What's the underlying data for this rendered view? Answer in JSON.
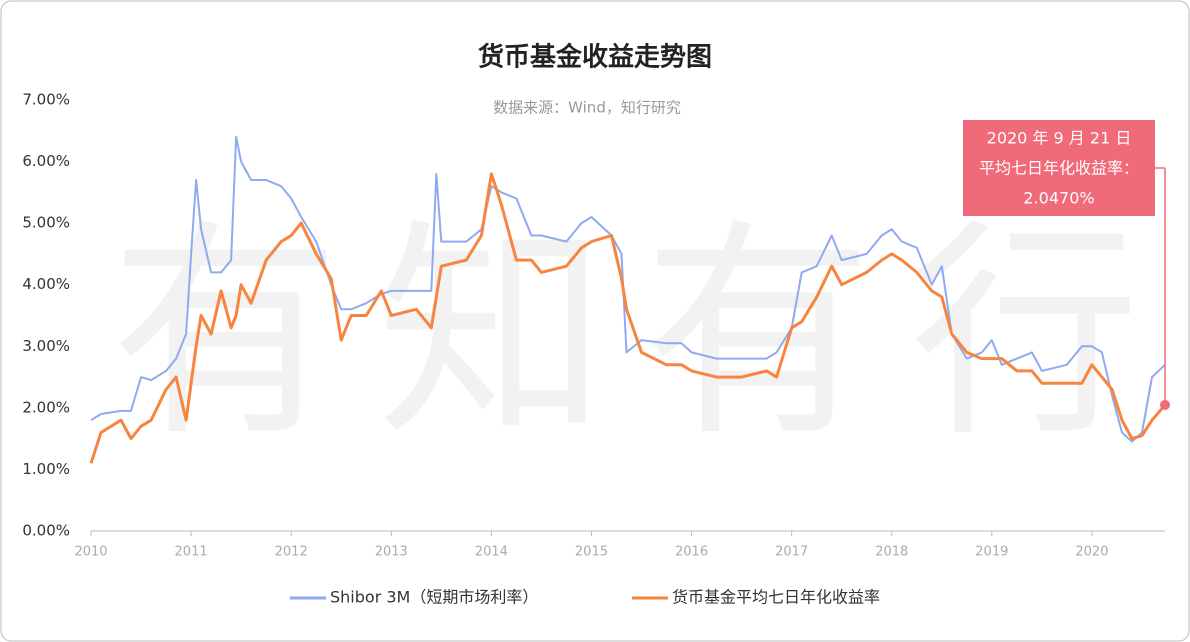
{
  "chart_data": {
    "type": "line",
    "title": "货币基金收益走势图",
    "subtitle": "数据来源：Wind，知行研究",
    "watermark": "有知有行",
    "annotation": {
      "lines": [
        "2020 年 9 月 21 日",
        "平均七日年化收益率：",
        "2.0470%"
      ],
      "color": "#f06a79"
    },
    "x": [
      2010.0,
      2010.1,
      2010.3,
      2010.4,
      2010.5,
      2010.6,
      2010.75,
      2010.85,
      2010.95,
      2011.0,
      2011.05,
      2011.1,
      2011.2,
      2011.3,
      2011.4,
      2011.45,
      2011.5,
      2011.6,
      2011.75,
      2011.9,
      2012.0,
      2012.1,
      2012.25,
      2012.4,
      2012.5,
      2012.6,
      2012.75,
      2012.9,
      2013.0,
      2013.25,
      2013.4,
      2013.45,
      2013.5,
      2013.75,
      2013.9,
      2014.0,
      2014.1,
      2014.25,
      2014.4,
      2014.5,
      2014.75,
      2014.9,
      2015.0,
      2015.2,
      2015.3,
      2015.35,
      2015.5,
      2015.75,
      2015.9,
      2016.0,
      2016.25,
      2016.5,
      2016.75,
      2016.85,
      2017.0,
      2017.1,
      2017.25,
      2017.4,
      2017.5,
      2017.75,
      2017.9,
      2018.0,
      2018.1,
      2018.25,
      2018.4,
      2018.5,
      2018.6,
      2018.75,
      2018.9,
      2019.0,
      2019.1,
      2019.25,
      2019.4,
      2019.5,
      2019.75,
      2019.9,
      2020.0,
      2020.1,
      2020.2,
      2020.3,
      2020.4,
      2020.5,
      2020.6,
      2020.73
    ],
    "series": [
      {
        "name": "Shibor 3M（短期市场利率）",
        "color": "#8faaf0",
        "values": [
          1.8,
          1.9,
          1.95,
          1.95,
          2.5,
          2.45,
          2.6,
          2.8,
          3.2,
          4.5,
          5.7,
          4.9,
          4.2,
          4.2,
          4.4,
          6.4,
          6.0,
          5.7,
          5.7,
          5.6,
          5.4,
          5.1,
          4.7,
          4.0,
          3.6,
          3.6,
          3.7,
          3.85,
          3.9,
          3.9,
          3.9,
          5.8,
          4.7,
          4.7,
          4.9,
          5.6,
          5.5,
          5.4,
          4.8,
          4.8,
          4.7,
          5.0,
          5.1,
          4.8,
          4.5,
          2.9,
          3.1,
          3.05,
          3.05,
          2.9,
          2.8,
          2.8,
          2.8,
          2.9,
          3.3,
          4.2,
          4.3,
          4.8,
          4.4,
          4.5,
          4.8,
          4.9,
          4.7,
          4.6,
          4.0,
          4.3,
          3.2,
          2.8,
          2.9,
          3.1,
          2.7,
          2.8,
          2.9,
          2.6,
          2.7,
          3.0,
          3.0,
          2.9,
          2.2,
          1.6,
          1.45,
          1.6,
          2.5,
          2.7
        ]
      },
      {
        "name": "货币基金平均七日年化收益率",
        "color": "#f7843f",
        "values": [
          1.1,
          1.6,
          1.8,
          1.5,
          1.7,
          1.8,
          2.3,
          2.5,
          1.8,
          2.4,
          3.0,
          3.5,
          3.2,
          3.9,
          3.3,
          3.5,
          4.0,
          3.7,
          4.4,
          4.7,
          4.8,
          5.0,
          4.5,
          4.1,
          3.1,
          3.5,
          3.5,
          3.9,
          3.5,
          3.6,
          3.3,
          3.8,
          4.3,
          4.4,
          4.8,
          5.8,
          5.3,
          4.4,
          4.4,
          4.2,
          4.3,
          4.6,
          4.7,
          4.8,
          4.1,
          3.6,
          2.9,
          2.7,
          2.7,
          2.6,
          2.5,
          2.5,
          2.6,
          2.5,
          3.3,
          3.4,
          3.8,
          4.3,
          4.0,
          4.2,
          4.4,
          4.5,
          4.4,
          4.2,
          3.9,
          3.8,
          3.2,
          2.9,
          2.8,
          2.8,
          2.8,
          2.6,
          2.6,
          2.4,
          2.4,
          2.4,
          2.7,
          2.5,
          2.3,
          1.8,
          1.5,
          1.55,
          1.8,
          2.047
        ]
      }
    ],
    "xlim": [
      2010,
      2020.73
    ],
    "xticks": [
      2010,
      2011,
      2012,
      2013,
      2014,
      2015,
      2016,
      2017,
      2018,
      2019,
      2020
    ],
    "ylim": [
      0,
      7
    ],
    "yticks": [
      {
        "value": 0,
        "label": "0.00%"
      },
      {
        "value": 1,
        "label": "1.00%"
      },
      {
        "value": 2,
        "label": "2.00%"
      },
      {
        "value": 3,
        "label": "3.00%"
      },
      {
        "value": 4,
        "label": "4.00%"
      },
      {
        "value": 5,
        "label": "5.00%"
      },
      {
        "value": 6,
        "label": "6.00%"
      },
      {
        "value": 7,
        "label": "7.00%"
      }
    ],
    "grid": false,
    "legend": "bottom"
  }
}
